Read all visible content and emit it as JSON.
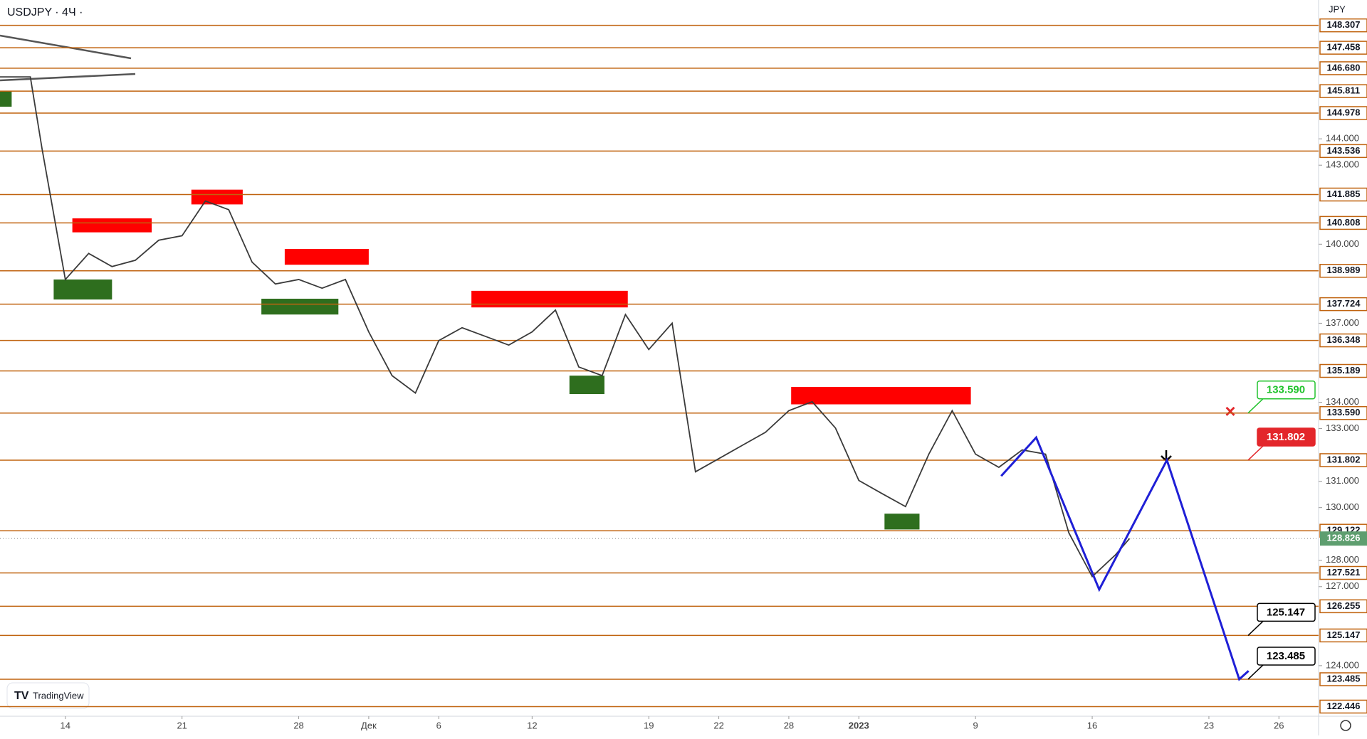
{
  "chart_data": {
    "type": "line",
    "title": "USDJPY · 4Ч ·",
    "currency_label": "JPY",
    "watermark": "TradingView",
    "xlim": [
      -2.8,
      53.7
    ],
    "ylim": [
      122.08,
      149.27
    ],
    "xticks": [
      {
        "value": 0,
        "label": "14"
      },
      {
        "value": 5,
        "label": "21"
      },
      {
        "value": 10,
        "label": "28"
      },
      {
        "value": 13,
        "label": "Дек"
      },
      {
        "value": 16,
        "label": "6"
      },
      {
        "value": 20,
        "label": "12"
      },
      {
        "value": 25,
        "label": "19"
      },
      {
        "value": 28,
        "label": "22"
      },
      {
        "value": 31,
        "label": "28"
      },
      {
        "value": 34,
        "label": "2023"
      },
      {
        "value": 39,
        "label": "9"
      },
      {
        "value": 44,
        "label": "16"
      },
      {
        "value": 49,
        "label": "23"
      },
      {
        "value": 52,
        "label": "26"
      }
    ],
    "yticks": [
      {
        "value": 144,
        "label": "144.000"
      },
      {
        "value": 143,
        "label": "143.000"
      },
      {
        "value": 140,
        "label": "140.000"
      },
      {
        "value": 137,
        "label": "137.000"
      },
      {
        "value": 134,
        "label": "134.000"
      },
      {
        "value": 133,
        "label": "133.000"
      },
      {
        "value": 131,
        "label": "131.000"
      },
      {
        "value": 130,
        "label": "130.000"
      },
      {
        "value": 128,
        "label": "128.000"
      },
      {
        "value": 127,
        "label": "127.000"
      },
      {
        "value": 124,
        "label": "124.000"
      }
    ],
    "level_color": "#c0630f",
    "levels": [
      {
        "value": 148.307,
        "label": "148.307"
      },
      {
        "value": 147.458,
        "label": "147.458"
      },
      {
        "value": 146.68,
        "label": "146.680"
      },
      {
        "value": 145.811,
        "label": "145.811"
      },
      {
        "value": 144.978,
        "label": "144.978"
      },
      {
        "value": 143.536,
        "label": "143.536"
      },
      {
        "value": 141.885,
        "label": "141.885"
      },
      {
        "value": 140.808,
        "label": "140.808"
      },
      {
        "value": 138.989,
        "label": "138.989"
      },
      {
        "value": 137.724,
        "label": "137.724"
      },
      {
        "value": 136.348,
        "label": "136.348"
      },
      {
        "value": 135.189,
        "label": "135.189"
      },
      {
        "value": 133.59,
        "label": "133.590"
      },
      {
        "value": 131.802,
        "label": "131.802"
      },
      {
        "value": 129.122,
        "label": "129.122"
      },
      {
        "value": 127.521,
        "label": "127.521"
      },
      {
        "value": 126.255,
        "label": "126.255"
      },
      {
        "value": 125.147,
        "label": "125.147"
      },
      {
        "value": 123.485,
        "label": "123.485"
      },
      {
        "value": 122.446,
        "label": "122.446"
      }
    ],
    "current_price": {
      "value": 128.826,
      "label": "128.826",
      "color": "#5e9e6f"
    },
    "callouts": [
      {
        "value": 133.59,
        "label": "133.590",
        "color": "#22c32e"
      },
      {
        "value": 131.802,
        "label": "131.802",
        "color": "#e3262b"
      },
      {
        "value": 125.147,
        "label": "125.147",
        "color": "#000000"
      },
      {
        "value": 123.485,
        "label": "123.485",
        "color": "#000000"
      }
    ],
    "series": [
      {
        "color": "#3a3a3a",
        "x": [
          -2.8,
          -1.5,
          -1,
          0,
          1,
          2,
          3,
          4,
          5,
          6,
          7,
          8,
          9,
          10,
          11,
          12,
          13,
          14,
          15,
          16,
          17,
          18,
          19,
          20,
          21,
          22,
          23,
          24,
          25,
          26,
          27,
          28,
          29,
          30,
          31,
          32,
          33,
          34,
          35,
          36,
          37,
          38,
          39,
          40,
          41,
          42,
          43,
          44,
          45,
          45.6
        ],
        "values": [
          146.35,
          146.35,
          143.63,
          138.66,
          139.65,
          139.15,
          139.39,
          140.15,
          140.32,
          141.64,
          141.31,
          139.32,
          138.49,
          138.66,
          138.33,
          138.66,
          136.67,
          135.01,
          134.35,
          136.34,
          136.83,
          136.5,
          136.17,
          136.67,
          137.5,
          135.34,
          135.01,
          137.33,
          136.0,
          137.0,
          131.36,
          131.86,
          132.36,
          132.86,
          133.68,
          134.02,
          133.02,
          131.03,
          130.53,
          130.04,
          132.03,
          133.68,
          132.03,
          131.53,
          132.19,
          132.03,
          129.04,
          127.38,
          128.21,
          128.826
        ]
      }
    ],
    "projection": {
      "color": "#1f1fd6",
      "x": [
        40.1,
        41.6,
        44.3,
        47.2,
        50.3,
        50.7
      ],
      "values": [
        131.2,
        132.66,
        126.89,
        131.802,
        123.485,
        123.8
      ]
    },
    "zones": [
      {
        "color": "#ff0000",
        "x": [
          5.4,
          7.6
        ],
        "y": [
          141.51,
          142.07
        ]
      },
      {
        "color": "#ff0000",
        "x": [
          0.3,
          3.7
        ],
        "y": [
          140.45,
          140.98
        ]
      },
      {
        "color": "#ff0000",
        "x": [
          9.4,
          13.0
        ],
        "y": [
          139.22,
          139.82
        ]
      },
      {
        "color": "#ff0000",
        "x": [
          17.4,
          24.1
        ],
        "y": [
          137.6,
          138.23
        ]
      },
      {
        "color": "#ff0000",
        "x": [
          31.1,
          38.8
        ],
        "y": [
          133.92,
          134.58
        ]
      },
      {
        "color": "#2e6e1e",
        "x": [
          -2.8,
          -2.3
        ],
        "y": [
          145.22,
          145.82
        ]
      },
      {
        "color": "#2e6e1e",
        "x": [
          -0.5,
          2.0
        ],
        "y": [
          137.9,
          138.66
        ]
      },
      {
        "color": "#2e6e1e",
        "x": [
          8.4,
          11.7
        ],
        "y": [
          137.33,
          137.93
        ]
      },
      {
        "color": "#2e6e1e",
        "x": [
          21.6,
          23.1
        ],
        "y": [
          134.31,
          135.01
        ]
      },
      {
        "color": "#2e6e1e",
        "x": [
          35.1,
          36.6
        ],
        "y": [
          129.17,
          129.77
        ]
      }
    ]
  }
}
